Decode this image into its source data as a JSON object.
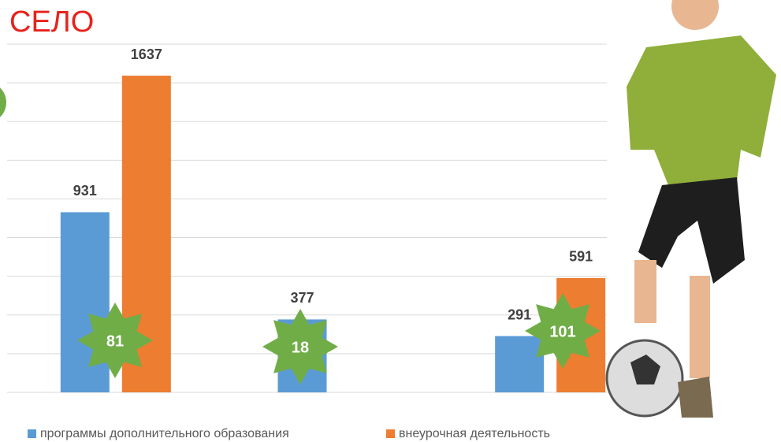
{
  "chart_data": {
    "type": "bar",
    "title": "СЕЛО",
    "categories": [
      null,
      null,
      null
    ],
    "series": [
      {
        "name": "программы дополнительного образования",
        "color": "#5b9bd5",
        "values": [
          931,
          377,
          291
        ]
      },
      {
        "name": "внеурочная деятельность",
        "color": "#ed7d31",
        "values": [
          1637,
          null,
          591
        ]
      }
    ],
    "badges": [
      81,
      18,
      101
    ],
    "badge_color": "#70ad47",
    "ylim": [
      0,
      1800
    ],
    "yticks": [
      0,
      200,
      400,
      600,
      800,
      1000,
      1200,
      1400,
      1600,
      1800
    ],
    "grid": true,
    "legend": "bottom"
  }
}
